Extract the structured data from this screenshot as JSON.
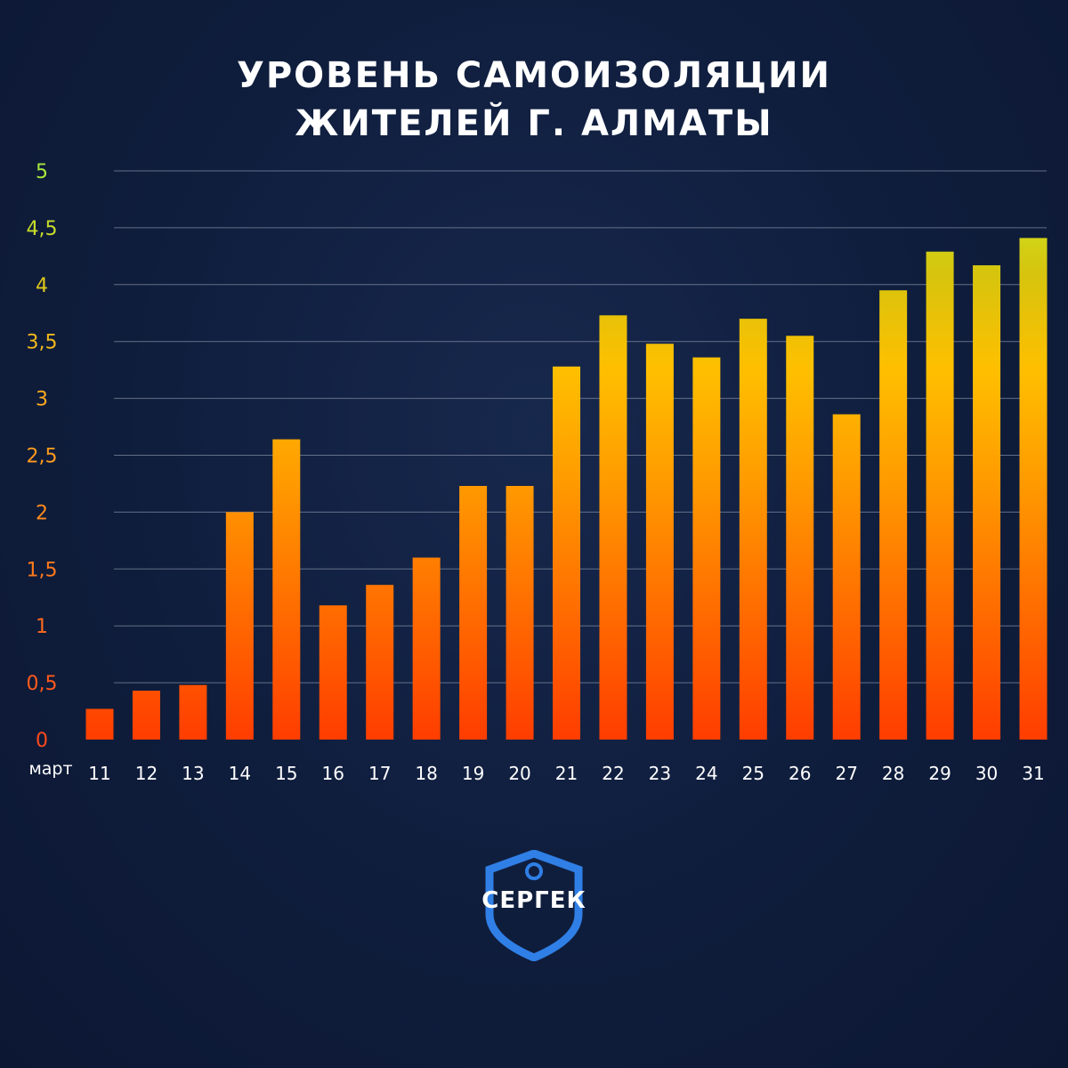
{
  "title": {
    "line1": "УРОВЕНЬ САМОИЗОЛЯЦИИ",
    "line2": "ЖИТЕЛЕЙ Г. АЛМАТЫ"
  },
  "logo": {
    "text": "СЕРГЕК"
  },
  "colors": {
    "background": "#0e1b38",
    "bar_bottom": "#ff3d00",
    "bar_mid": "#ffb300",
    "bar_top": "#c8e619",
    "grid": "#8892a8"
  },
  "chart_data": {
    "type": "bar",
    "title": "УРОВЕНЬ САМОИЗОЛЯЦИИ ЖИТЕЛЕЙ Г. АЛМАТЫ",
    "xlabel": "март",
    "ylabel": "",
    "ylim": [
      0,
      5
    ],
    "yticks": [
      "0",
      "0,5",
      "1",
      "1,5",
      "2",
      "2,5",
      "3",
      "3,5",
      "4",
      "4,5",
      "5"
    ],
    "ytick_colors": [
      "#ff4a1c",
      "#ff5a1c",
      "#ff6a1c",
      "#ff7a1c",
      "#ff8a1c",
      "#ff9a1c",
      "#ffaa1c",
      "#f0b81c",
      "#e0c81c",
      "#c8dd2a",
      "#a8e83c"
    ],
    "grid": true,
    "categories": [
      "11",
      "12",
      "13",
      "14",
      "15",
      "16",
      "17",
      "18",
      "19",
      "20",
      "21",
      "22",
      "23",
      "24",
      "25",
      "26",
      "27",
      "28",
      "29",
      "30",
      "31"
    ],
    "values": [
      0.27,
      0.43,
      0.48,
      2.0,
      2.64,
      1.18,
      1.36,
      1.6,
      2.23,
      2.23,
      3.28,
      3.73,
      3.48,
      3.36,
      3.7,
      3.55,
      2.86,
      3.95,
      4.29,
      4.17,
      4.41
    ]
  }
}
